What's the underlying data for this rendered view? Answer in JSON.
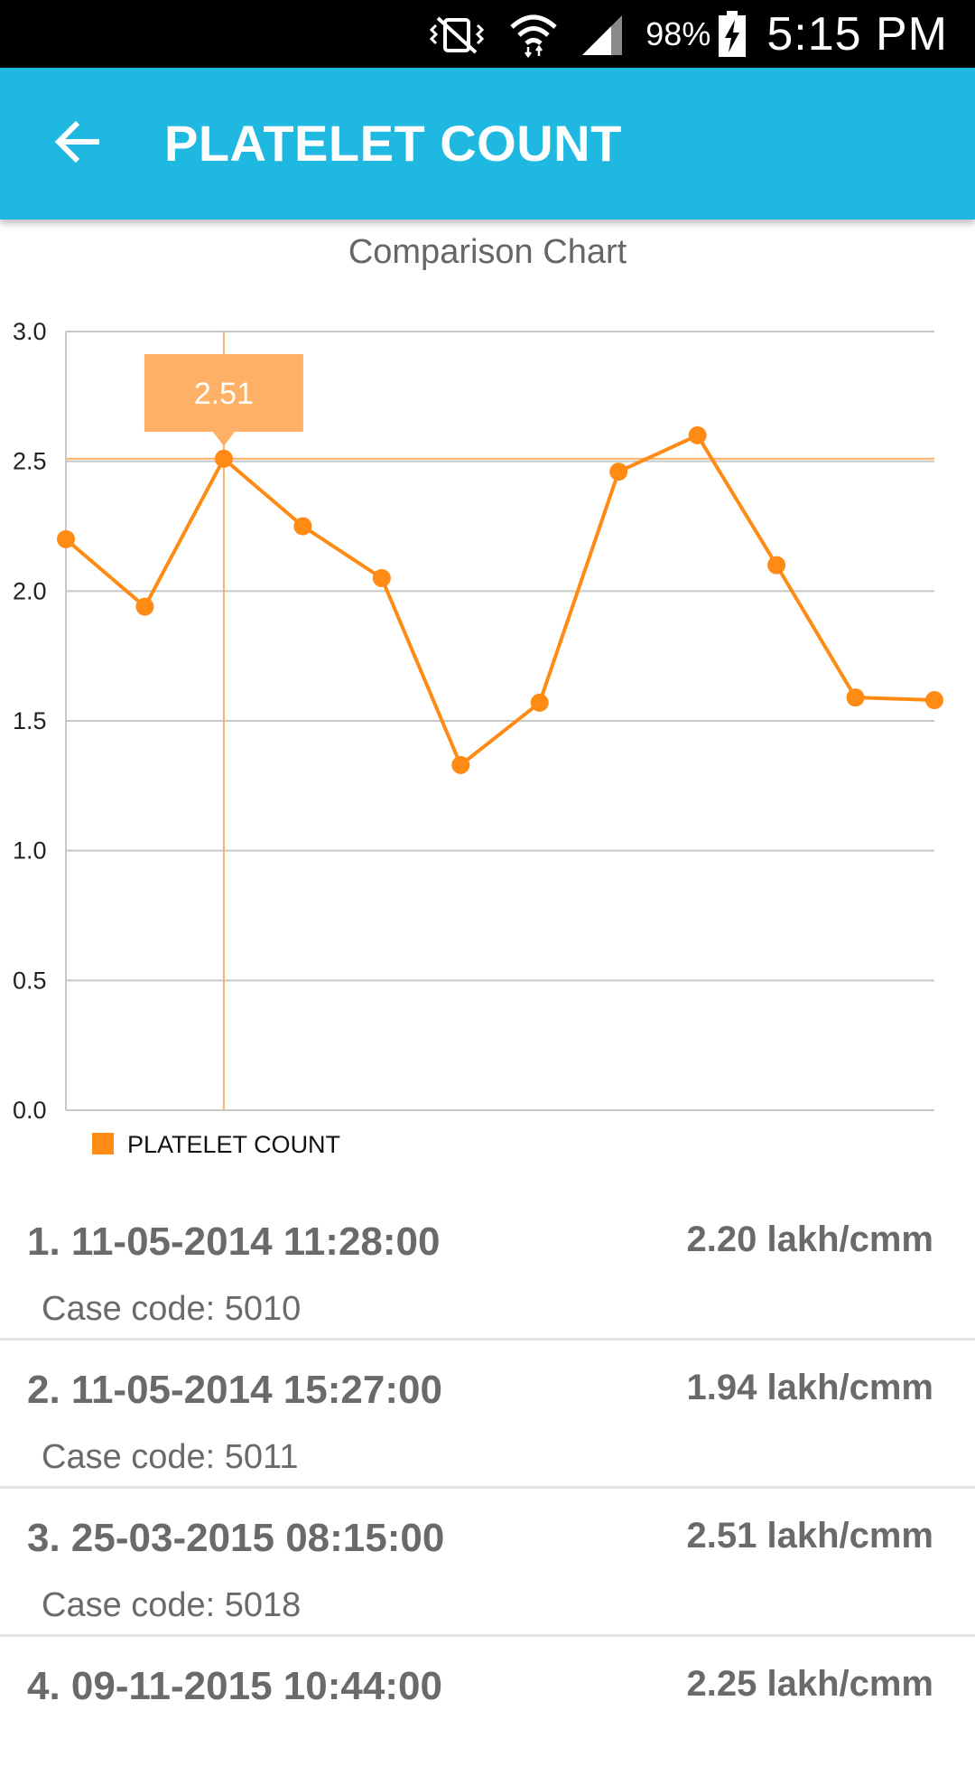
{
  "status_bar": {
    "battery": "98%",
    "time": "5:15 PM",
    "icons": [
      "vibrate-mute-icon",
      "wifi-icon",
      "signal-icon",
      "battery-charging-icon"
    ]
  },
  "app_bar": {
    "title": "PLATELET COUNT",
    "back_icon": "arrow-left-icon",
    "background": "#1fb8e1"
  },
  "chart_title": "Comparison Chart",
  "chart_data": {
    "type": "line",
    "title": "Comparison Chart",
    "xlabel": "",
    "ylabel": "",
    "ylim": [
      0,
      3.0
    ],
    "yticks": [
      "0.0",
      "0.5",
      "1.0",
      "1.5",
      "2.0",
      "2.5",
      "3.0"
    ],
    "grid": true,
    "legend_position": "bottom-left",
    "series": [
      {
        "name": "PLATELET COUNT",
        "color": "#ff8a14",
        "values": [
          2.2,
          1.94,
          2.51,
          2.25,
          2.05,
          1.33,
          1.57,
          2.46,
          2.6,
          2.1,
          1.59,
          1.58
        ]
      }
    ],
    "highlight": {
      "index": 2,
      "label": "2.51",
      "color": "#ffb067"
    }
  },
  "readings": [
    {
      "title": "1.  11-05-2014 11:28:00",
      "value": "2.20 lakh/cmm",
      "case": "Case code: 5010"
    },
    {
      "title": "2.  11-05-2014 15:27:00",
      "value": "1.94 lakh/cmm",
      "case": "Case code: 5011"
    },
    {
      "title": "3.  25-03-2015 08:15:00",
      "value": "2.51 lakh/cmm",
      "case": "Case code: 5018"
    },
    {
      "title": "4.  09-11-2015 10:44:00",
      "value": "2.25 lakh/cmm",
      "case": ""
    }
  ]
}
